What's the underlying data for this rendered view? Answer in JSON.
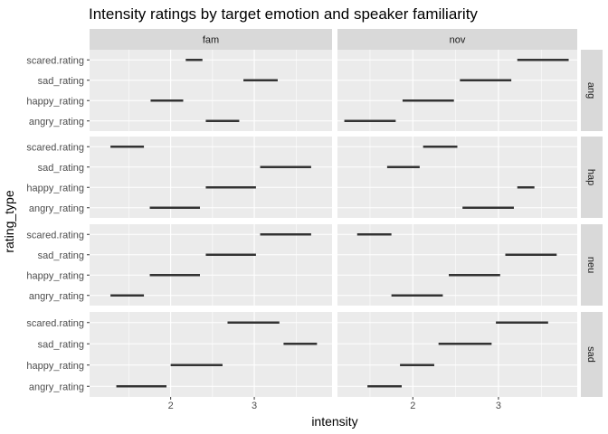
{
  "chart_data": {
    "type": "faceted-range",
    "title": "Intensity ratings by target emotion and speaker familiarity",
    "xlabel": "intensity",
    "ylabel": "rating_type",
    "col_facets": [
      "fam",
      "nov"
    ],
    "row_facets": [
      "ang",
      "hap",
      "neu",
      "sad"
    ],
    "categories": [
      "angry_rating",
      "happy_rating",
      "sad_rating",
      "scared.rating"
    ],
    "x_ticks": [
      2,
      3
    ],
    "panels": [
      {
        "col": "fam",
        "xlim": [
          1.03,
          3.93
        ],
        "rows": {
          "ang": [
            [
              2.42,
              2.82
            ],
            [
              1.76,
              2.15
            ],
            [
              2.87,
              3.28
            ],
            [
              2.18,
              2.38
            ]
          ],
          "hap": [
            [
              1.75,
              2.35
            ],
            [
              2.42,
              3.02
            ],
            [
              3.07,
              3.68
            ],
            [
              1.28,
              1.68
            ]
          ],
          "neu": [
            [
              1.28,
              1.68
            ],
            [
              1.75,
              2.35
            ],
            [
              2.42,
              3.02
            ],
            [
              3.07,
              3.68
            ]
          ],
          "sad": [
            [
              1.35,
              1.95
            ],
            [
              2.0,
              2.62
            ],
            [
              3.35,
              3.75
            ],
            [
              2.68,
              3.3
            ]
          ]
        }
      },
      {
        "col": "nov",
        "xlim": [
          1.12,
          3.92
        ],
        "rows": {
          "ang": [
            [
              1.2,
              1.8
            ],
            [
              1.88,
              2.48
            ],
            [
              2.55,
              3.15
            ],
            [
              3.22,
              3.82
            ]
          ],
          "hap": [
            [
              2.58,
              3.18
            ],
            [
              3.22,
              3.42
            ],
            [
              1.7,
              2.08
            ],
            [
              2.12,
              2.52
            ]
          ],
          "neu": [
            [
              1.75,
              2.35
            ],
            [
              2.42,
              3.02
            ],
            [
              3.08,
              3.68
            ],
            [
              1.35,
              1.75
            ]
          ],
          "sad": [
            [
              1.47,
              1.87
            ],
            [
              1.85,
              2.25
            ],
            [
              2.3,
              2.92
            ],
            [
              2.97,
              3.58
            ]
          ]
        }
      }
    ]
  }
}
